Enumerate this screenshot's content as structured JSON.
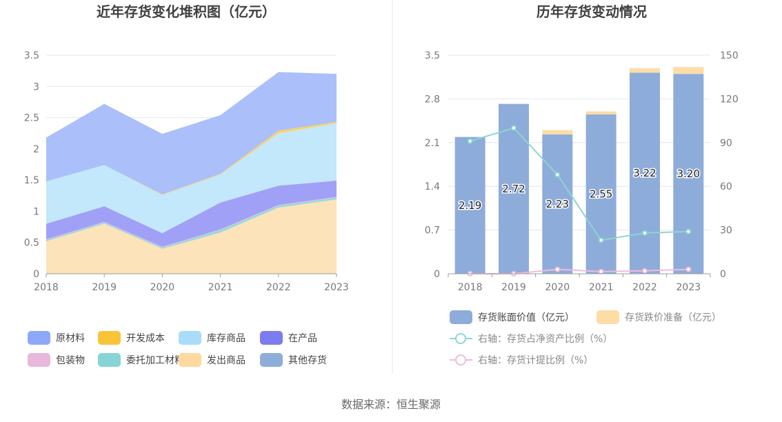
{
  "source_text": "数据来源：恒生聚源",
  "chart_data": [
    {
      "type": "area",
      "stacked": true,
      "title": "近年存货变化堆积图（亿元）",
      "x": [
        "2018",
        "2019",
        "2020",
        "2021",
        "2022",
        "2023"
      ],
      "ylim": [
        0,
        3.5
      ],
      "yticks": [
        "0",
        "0.5",
        "1",
        "1.5",
        "2",
        "2.5",
        "3",
        "3.5"
      ],
      "grid": true,
      "legend_position": "bottom",
      "series": [
        {
          "name": "发出商品",
          "color": "#fde2b5",
          "values": [
            0.52,
            0.8,
            0.4,
            0.66,
            1.06,
            1.19
          ]
        },
        {
          "name": "委托加工材料",
          "color": "#8fd8d8",
          "values": [
            0.02,
            0.02,
            0.02,
            0.04,
            0.03,
            0.03
          ]
        },
        {
          "name": "包装物",
          "color": "#e8b8dc",
          "values": [
            0.01,
            0.01,
            0.01,
            0.01,
            0.01,
            0.01
          ]
        },
        {
          "name": "在产品",
          "color": "#9b9cf6",
          "values": [
            0.25,
            0.25,
            0.22,
            0.43,
            0.31,
            0.26
          ]
        },
        {
          "name": "库存商品",
          "color": "#c0e6fb",
          "values": [
            0.68,
            0.66,
            0.61,
            0.45,
            0.84,
            0.92
          ]
        },
        {
          "name": "开发成本",
          "color": "#fbd05a",
          "values": [
            0.0,
            0.0,
            0.01,
            0.01,
            0.04,
            0.02
          ]
        },
        {
          "name": "其他存货",
          "color": "#8fadd9",
          "values": [
            0.0,
            0.0,
            0.0,
            0.0,
            0.0,
            0.0
          ]
        },
        {
          "name": "原材料",
          "color": "#a6bcfa",
          "values": [
            0.7,
            0.98,
            0.97,
            0.94,
            0.94,
            0.77
          ]
        }
      ],
      "legend": [
        {
          "name": "原材料",
          "color": "#8da8fa"
        },
        {
          "name": "开发成本",
          "color": "#fbc438"
        },
        {
          "name": "库存商品",
          "color": "#a8dcf8"
        },
        {
          "name": "在产品",
          "color": "#7a7cf0"
        },
        {
          "name": "包装物",
          "color": "#e8b8dc"
        },
        {
          "name": "委托加工材料",
          "color": "#86d4d4"
        },
        {
          "name": "发出商品",
          "color": "#fdd9a0"
        },
        {
          "name": "其他存货",
          "color": "#8fadd9"
        }
      ]
    },
    {
      "type": "bar",
      "stacked": true,
      "title": "历年存货变动情况",
      "categories": [
        "2018",
        "2019",
        "2020",
        "2021",
        "2022",
        "2023"
      ],
      "ylim": [
        0,
        3.5
      ],
      "yticks": [
        "0",
        "0.7",
        "1.4",
        "2.1",
        "2.8",
        "3.5"
      ],
      "y2lim": [
        0,
        150
      ],
      "y2ticks": [
        "0",
        "30",
        "60",
        "90",
        "120",
        "150"
      ],
      "grid": true,
      "legend_position": "bottom",
      "series": [
        {
          "name": "存货账面价值（亿元）",
          "color": "#8eacda",
          "axis": "left",
          "kind": "bar",
          "values": [
            2.19,
            2.72,
            2.23,
            2.55,
            3.22,
            3.2
          ],
          "labels": [
            "2.19",
            "2.72",
            "2.23",
            "2.55",
            "3.22",
            "3.20"
          ]
        },
        {
          "name": "存货跌价准备（亿元）",
          "color": "#fddca6",
          "axis": "left",
          "kind": "bar",
          "values": [
            0.0,
            0.0,
            0.07,
            0.05,
            0.07,
            0.11
          ]
        },
        {
          "name": "右轴：存货占净资产比例（%）",
          "color": "#8dd5d2",
          "axis": "right",
          "kind": "line",
          "values": [
            91,
            100,
            68,
            23,
            28,
            29
          ]
        },
        {
          "name": "右轴：存货计提比例（%）",
          "color": "#ecbddc",
          "axis": "right",
          "kind": "line",
          "values": [
            0,
            0,
            3,
            1.5,
            2,
            3
          ]
        }
      ]
    }
  ]
}
